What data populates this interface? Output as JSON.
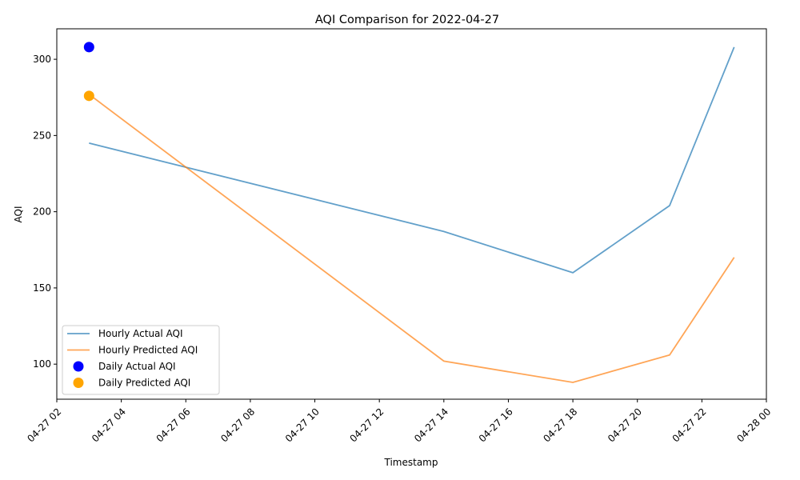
{
  "chart_data": {
    "type": "line",
    "title": "AQI Comparison for 2022-04-27",
    "xlabel": "Timestamp",
    "ylabel": "AQI",
    "xlim": [
      "2022-04-27 02:00",
      "2022-04-28 00:00"
    ],
    "ylim": [
      77,
      320
    ],
    "x_ticks": [
      {
        "value": "2022-04-27 02:00",
        "label": "04-27 02"
      },
      {
        "value": "2022-04-27 04:00",
        "label": "04-27 04"
      },
      {
        "value": "2022-04-27 06:00",
        "label": "04-27 06"
      },
      {
        "value": "2022-04-27 08:00",
        "label": "04-27 08"
      },
      {
        "value": "2022-04-27 10:00",
        "label": "04-27 10"
      },
      {
        "value": "2022-04-27 12:00",
        "label": "04-27 12"
      },
      {
        "value": "2022-04-27 14:00",
        "label": "04-27 14"
      },
      {
        "value": "2022-04-27 16:00",
        "label": "04-27 16"
      },
      {
        "value": "2022-04-27 18:00",
        "label": "04-27 18"
      },
      {
        "value": "2022-04-27 20:00",
        "label": "04-27 20"
      },
      {
        "value": "2022-04-27 22:00",
        "label": "04-27 22"
      },
      {
        "value": "2022-04-28 00:00",
        "label": "04-28 00"
      }
    ],
    "y_ticks": [
      100,
      150,
      200,
      250,
      300
    ],
    "grid": false,
    "legend_position": "lower-left",
    "series": [
      {
        "name": "Hourly Actual AQI",
        "kind": "line",
        "color": "#1f77b4",
        "x": [
          "2022-04-27 03:00",
          "2022-04-27 14:00",
          "2022-04-27 18:00",
          "2022-04-27 21:00",
          "2022-04-27 23:00"
        ],
        "y": [
          245,
          187,
          160,
          204,
          308
        ]
      },
      {
        "name": "Hourly Predicted AQI",
        "kind": "line",
        "color": "#ff7f0e",
        "x": [
          "2022-04-27 03:00",
          "2022-04-27 14:00",
          "2022-04-27 18:00",
          "2022-04-27 21:00",
          "2022-04-27 23:00"
        ],
        "y": [
          277,
          102,
          88,
          106,
          170
        ]
      },
      {
        "name": "Daily Actual AQI",
        "kind": "scatter",
        "color": "#0000ff",
        "x": [
          "2022-04-27 03:00"
        ],
        "y": [
          308
        ]
      },
      {
        "name": "Daily Predicted AQI",
        "kind": "scatter",
        "color": "#ffa500",
        "x": [
          "2022-04-27 03:00"
        ],
        "y": [
          276
        ]
      }
    ]
  }
}
